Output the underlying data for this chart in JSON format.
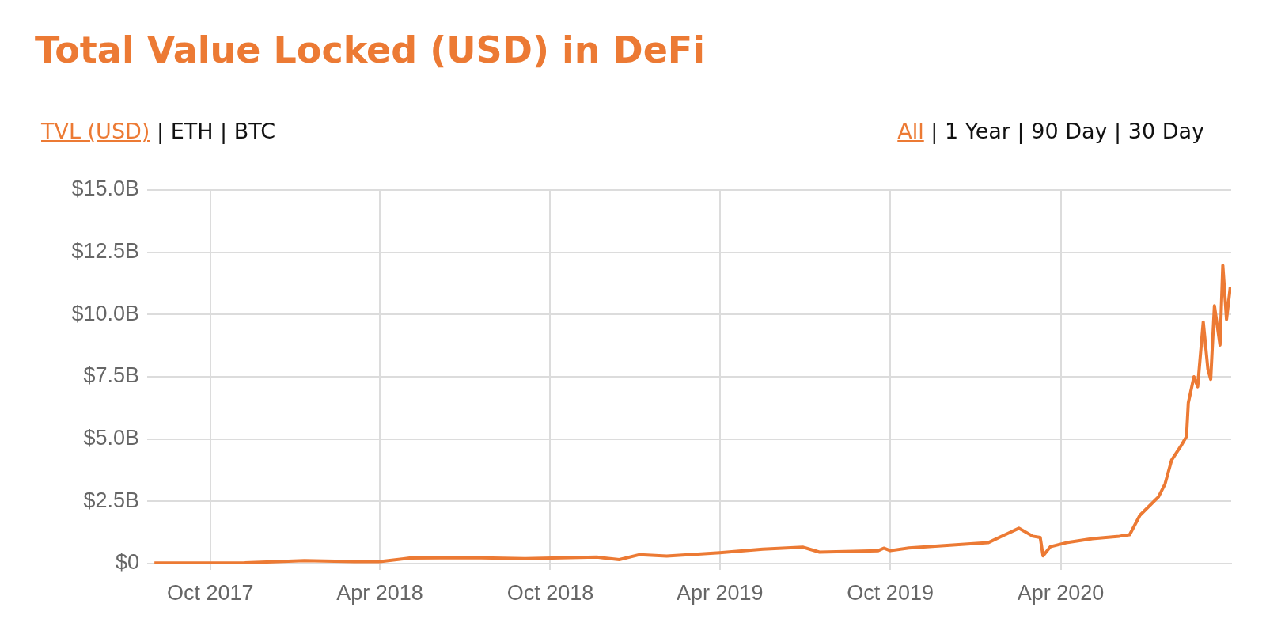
{
  "chart_data": {
    "type": "line",
    "title": "Total Value Locked (USD) in DeFi",
    "annotations": [
      "TVL (USD) | ETH | BTC",
      "All | 1 Year | 90 Day | 30 Day"
    ],
    "x": [
      "2017-08-02",
      "2017-11-07",
      "2018-01-10",
      "2018-03-05",
      "2018-04-01",
      "2018-05-03",
      "2018-07-07",
      "2018-09-04",
      "2018-11-20",
      "2018-12-14",
      "2019-01-05",
      "2019-02-03",
      "2019-04-01",
      "2019-05-17",
      "2019-06-29",
      "2019-07-17",
      "2019-09-18",
      "2019-09-24",
      "2019-10-01",
      "2019-10-21",
      "2020-01-14",
      "2020-02-16",
      "2020-03-02",
      "2020-03-10",
      "2020-03-13",
      "2020-03-21",
      "2020-04-07",
      "2020-05-05",
      "2020-06-03",
      "2020-06-14",
      "2020-06-25",
      "2020-07-15",
      "2020-07-22",
      "2020-07-29",
      "2020-08-09",
      "2020-08-14",
      "2020-08-16",
      "2020-08-22",
      "2020-08-26",
      "2020-09-01",
      "2020-09-06",
      "2020-09-09",
      "2020-09-13",
      "2020-09-19",
      "2020-09-22",
      "2020-09-26",
      "2020-09-30"
    ],
    "series": [
      {
        "color": "#ec7a34",
        "values": [
          0.02,
          0.03,
          0.12,
          0.08,
          0.08,
          0.22,
          0.24,
          0.2,
          0.26,
          0.16,
          0.36,
          0.3,
          0.44,
          0.58,
          0.66,
          0.46,
          0.52,
          0.62,
          0.52,
          0.63,
          0.84,
          1.42,
          1.1,
          1.05,
          0.31,
          0.68,
          0.84,
          1.0,
          1.1,
          1.16,
          1.94,
          2.68,
          3.2,
          4.15,
          4.78,
          5.1,
          6.46,
          7.5,
          7.1,
          9.7,
          7.8,
          7.4,
          10.35,
          8.77,
          11.97,
          9.8,
          11.1
        ]
      }
    ],
    "xlim": [
      "2017-08-01",
      "2020-10-01"
    ],
    "xticks": [
      {
        "value": "2017-10-01",
        "label": "Oct 2017"
      },
      {
        "value": "2018-04-01",
        "label": "Apr 2018"
      },
      {
        "value": "2018-10-01",
        "label": "Oct 2018"
      },
      {
        "value": "2019-04-01",
        "label": "Apr 2019"
      },
      {
        "value": "2019-10-01",
        "label": "Oct 2019"
      },
      {
        "value": "2020-04-01",
        "label": "Apr 2020"
      }
    ],
    "ylim": [
      0,
      15
    ],
    "yticks": [
      {
        "value": 0,
        "label": "$0"
      },
      {
        "value": 2.5,
        "label": "$2.5B"
      },
      {
        "value": 5,
        "label": "$5.0B"
      },
      {
        "value": 7.5,
        "label": "$7.5B"
      },
      {
        "value": 10,
        "label": "$10.0B"
      },
      {
        "value": 12.5,
        "label": "$12.5B"
      },
      {
        "value": 15,
        "label": "$15.0B"
      }
    ],
    "grid": true,
    "legend": false,
    "marker": "none",
    "line_style": "solid"
  }
}
